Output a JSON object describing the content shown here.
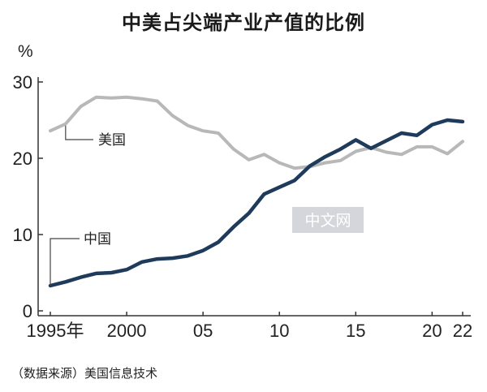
{
  "title": "中美占尖端产业产值的比例",
  "source": "（数据来源）美国信息技术",
  "watermark": "中文网",
  "colors": {
    "us": "#b8b8b8",
    "china": "#1f3b5c",
    "axis": "#333333",
    "watermark_box": "#d4d6dc"
  },
  "chart_data": {
    "type": "line",
    "title": "中美占尖端产业产值的比例",
    "ylabel": "%",
    "xlabel": "",
    "ylim": [
      0,
      30
    ],
    "xlim": [
      1995,
      2022
    ],
    "y_ticks": [
      0,
      10,
      20,
      30
    ],
    "y_tick_labels": [
      "0",
      "10",
      "20",
      "30"
    ],
    "x_ticks": [
      1995,
      2000,
      2005,
      2010,
      2015,
      2020,
      2022
    ],
    "x_tick_labels": [
      "1995年",
      "2000",
      "05",
      "10",
      "15",
      "20",
      "22"
    ],
    "grid": false,
    "legend": "inline labels",
    "series": [
      {
        "name": "美国",
        "color": "#b8b8b8",
        "x": [
          1995,
          1996,
          1997,
          1998,
          1999,
          2000,
          2001,
          2002,
          2003,
          2004,
          2005,
          2006,
          2007,
          2008,
          2009,
          2010,
          2011,
          2012,
          2013,
          2014,
          2015,
          2016,
          2017,
          2018,
          2019,
          2020,
          2021,
          2022
        ],
        "values": [
          23.6,
          24.5,
          26.8,
          28.0,
          27.9,
          28.0,
          27.8,
          27.5,
          25.6,
          24.3,
          23.6,
          23.3,
          21.2,
          19.8,
          20.5,
          19.4,
          18.7,
          18.9,
          19.4,
          19.7,
          20.9,
          21.4,
          20.8,
          20.5,
          21.5,
          21.5,
          20.6,
          22.2
        ]
      },
      {
        "name": "中国",
        "color": "#1f3b5c",
        "x": [
          1995,
          1996,
          1997,
          1998,
          1999,
          2000,
          2001,
          2002,
          2003,
          2004,
          2005,
          2006,
          2007,
          2008,
          2009,
          2010,
          2011,
          2012,
          2013,
          2014,
          2015,
          2016,
          2017,
          2018,
          2019,
          2020,
          2021,
          2022
        ],
        "values": [
          3.3,
          3.8,
          4.4,
          4.9,
          5.0,
          5.4,
          6.4,
          6.8,
          6.9,
          7.2,
          7.9,
          9.0,
          11.0,
          12.8,
          15.3,
          16.2,
          17.1,
          19.0,
          20.2,
          21.2,
          22.4,
          21.3,
          22.3,
          23.3,
          23.0,
          24.4,
          25.0,
          24.8
        ]
      }
    ]
  }
}
